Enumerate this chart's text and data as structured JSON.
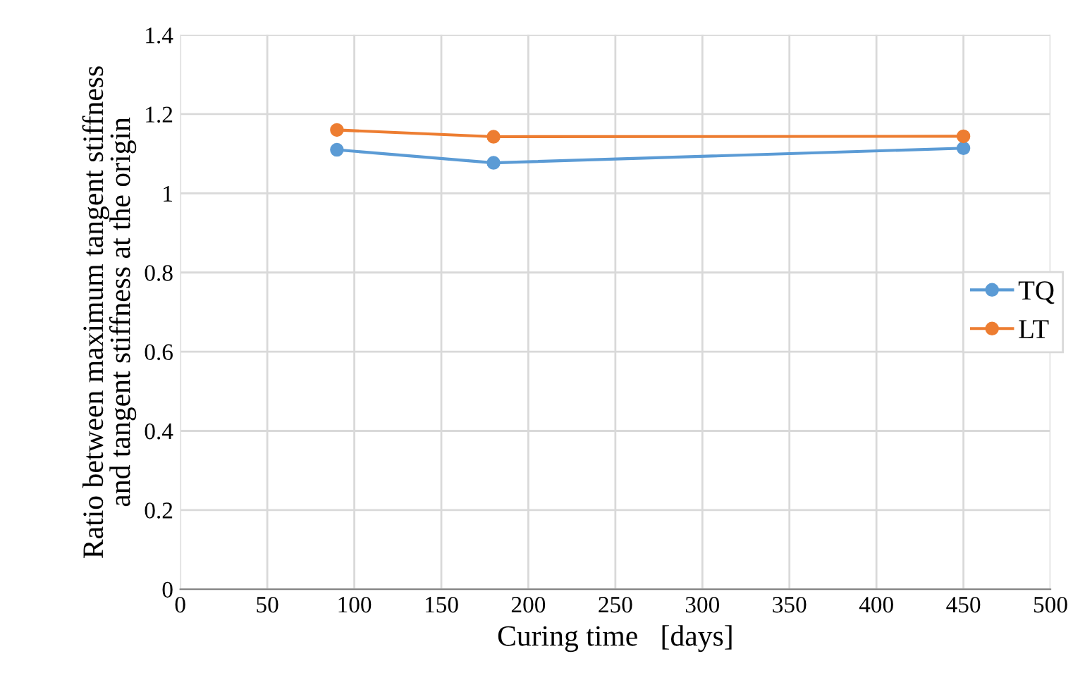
{
  "chart_data": {
    "type": "line",
    "xlabel": "Curing time   [days]",
    "ylabel": "Ratio between maximum tangent stiffness\nand tangent stiffness at the origin",
    "x": [
      90,
      180,
      450
    ],
    "series": [
      {
        "name": "TQ",
        "color": "#5b9bd5",
        "values": [
          1.11,
          1.077,
          1.114
        ]
      },
      {
        "name": "LT",
        "color": "#ed7d31",
        "values": [
          1.16,
          1.143,
          1.144
        ]
      }
    ],
    "xlim": [
      0,
      500
    ],
    "xticks": [
      0,
      50,
      100,
      150,
      200,
      250,
      300,
      350,
      400,
      450,
      500
    ],
    "ylim": [
      0,
      1.4
    ],
    "yticks": [
      0,
      0.2,
      0.4,
      0.6,
      0.8,
      1,
      1.2,
      1.4
    ],
    "grid": true,
    "legend": "right",
    "marker": "circle",
    "line_style": "solid"
  }
}
